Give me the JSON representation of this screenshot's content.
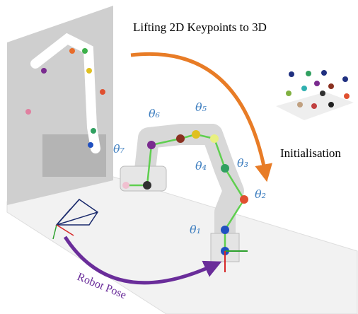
{
  "title": "Lifting  2D Keypoints to 3D",
  "initialisation": "Initialisation",
  "robot_pose": "Robot Pose",
  "joints": [
    "θ₁",
    "θ₂",
    "θ₃",
    "θ₄",
    "θ₅",
    "θ₆",
    "θ₇"
  ]
}
